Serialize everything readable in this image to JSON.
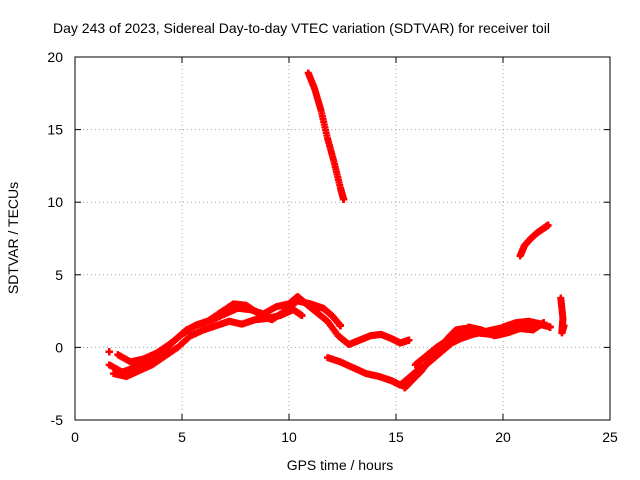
{
  "chart_data": {
    "type": "scatter",
    "title": "Day 243 of 2023, Sidereal Day-to-day VTEC variation (SDTVAR) for receiver toil",
    "xlabel": "GPS time / hours",
    "ylabel": "SDTVAR / TECUs",
    "xlim": [
      0,
      25
    ],
    "ylim": [
      -5,
      20
    ],
    "xticks": [
      "0",
      "5",
      "10",
      "15",
      "20",
      "25"
    ],
    "yticks": [
      "-5",
      "0",
      "5",
      "10",
      "15",
      "20"
    ],
    "grid": true,
    "legend": "none",
    "marker_color": "#ff0000",
    "series": [
      {
        "x": [
          1.6,
          2.2,
          2.8,
          3.4,
          4.0,
          4.6,
          5.2,
          5.8,
          6.4,
          7.0,
          7.6,
          8.2,
          8.8,
          9.4,
          10.0,
          10.4,
          10.8,
          11.3,
          11.8,
          12.3,
          12.8,
          13.3,
          13.8,
          14.3,
          14.8,
          15.2,
          15.6
        ],
        "y": [
          -1.2,
          -1.7,
          -1.4,
          -0.9,
          -0.5,
          0.4,
          1.2,
          1.6,
          1.9,
          2.3,
          2.7,
          2.6,
          2.3,
          2.8,
          3.0,
          3.5,
          3.0,
          2.4,
          1.8,
          0.8,
          0.2,
          0.5,
          0.8,
          0.9,
          0.6,
          0.3,
          0.5
        ]
      },
      {
        "x": [
          1.8,
          2.4,
          3.0,
          3.6,
          4.2,
          4.8,
          5.4,
          6.0,
          6.6,
          7.2,
          7.8,
          8.4,
          9.0,
          9.6,
          10.2,
          10.6
        ],
        "y": [
          -1.8,
          -2.0,
          -1.6,
          -1.2,
          -0.6,
          0.0,
          0.8,
          1.2,
          1.5,
          1.8,
          1.6,
          1.9,
          2.0,
          2.2,
          2.6,
          2.2
        ]
      },
      {
        "x": [
          2.0,
          2.6,
          3.2,
          3.8,
          4.4,
          5.0,
          5.6,
          6.2,
          6.8,
          7.4,
          8.0,
          8.6,
          9.2,
          9.8,
          10.4,
          11.0,
          11.6,
          12.0,
          12.4
        ],
        "y": [
          -0.5,
          -1.0,
          -0.8,
          -0.4,
          0.2,
          0.9,
          1.5,
          1.8,
          2.4,
          3.0,
          2.9,
          2.3,
          1.9,
          2.5,
          3.2,
          3.0,
          2.7,
          2.2,
          1.5
        ]
      },
      {
        "x": [
          11.8,
          12.4,
          13.0,
          13.6,
          14.2,
          14.8,
          15.2,
          15.6,
          16.0,
          16.4,
          16.8,
          17.2,
          17.6,
          18.0,
          18.6,
          19.2,
          19.8,
          20.4,
          21.0,
          21.6,
          22.0
        ],
        "y": [
          -0.7,
          -1.0,
          -1.4,
          -1.8,
          -2.0,
          -2.3,
          -2.6,
          -2.1,
          -1.6,
          -1.2,
          -0.7,
          -0.2,
          0.3,
          0.6,
          0.9,
          1.1,
          1.3,
          1.4,
          1.5,
          1.6,
          1.5
        ]
      },
      {
        "x": [
          15.4,
          15.8,
          16.2,
          16.6,
          17.0,
          17.4,
          17.8,
          18.2,
          18.8,
          19.4,
          20.0,
          20.6,
          21.2,
          21.8,
          22.2
        ],
        "y": [
          -2.8,
          -2.2,
          -1.6,
          -0.8,
          -0.2,
          0.6,
          1.2,
          1.3,
          1.0,
          0.9,
          1.4,
          1.7,
          1.8,
          1.6,
          1.4
        ]
      },
      {
        "x": [
          15.9,
          16.4,
          16.9,
          17.4,
          17.9,
          18.4,
          19.0,
          19.6,
          20.2,
          20.8,
          21.4,
          21.9
        ],
        "y": [
          -1.2,
          -0.6,
          0.0,
          0.5,
          0.9,
          1.4,
          1.2,
          0.8,
          1.0,
          1.3,
          1.2,
          1.7
        ]
      },
      {
        "x": [
          10.9,
          11.2,
          11.5,
          11.8,
          12.1,
          12.4,
          12.55
        ],
        "y": [
          18.9,
          17.8,
          16.3,
          14.4,
          12.8,
          11.0,
          10.2
        ]
      },
      {
        "x": [
          20.8,
          21.0,
          21.3,
          21.6,
          21.9,
          22.1
        ],
        "y": [
          6.3,
          7.0,
          7.5,
          7.9,
          8.2,
          8.4
        ]
      },
      {
        "x": [
          22.7,
          22.8,
          22.75,
          22.85,
          1.6
        ],
        "y": [
          3.4,
          2.0,
          1.0,
          1.5,
          -0.3
        ]
      }
    ]
  }
}
